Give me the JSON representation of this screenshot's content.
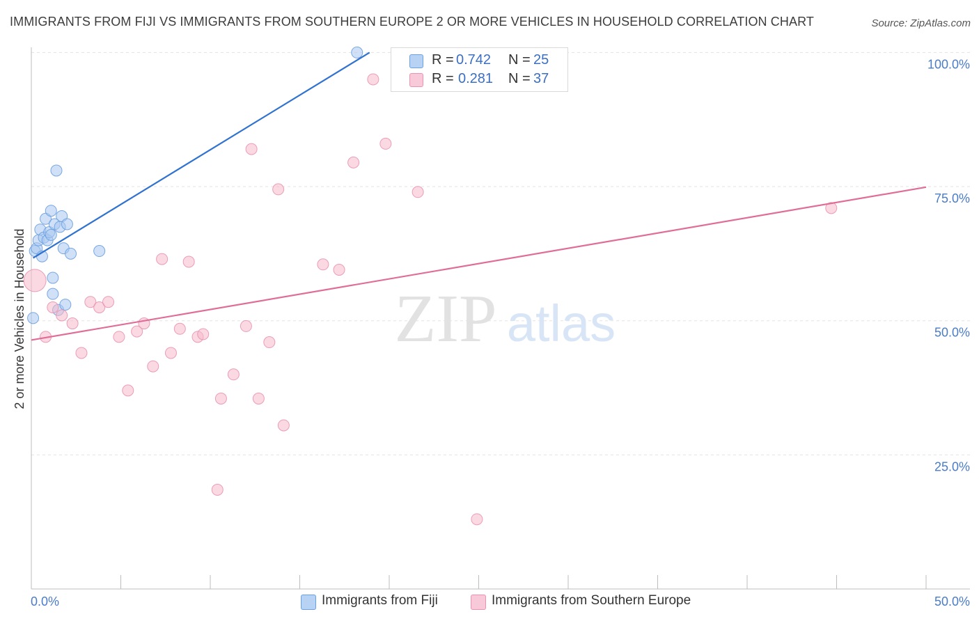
{
  "title": "IMMIGRANTS FROM FIJI VS IMMIGRANTS FROM SOUTHERN EUROPE 2 OR MORE VEHICLES IN HOUSEHOLD CORRELATION CHART",
  "source": "Source: ZipAtlas.com",
  "watermark": {
    "zip": "ZIP",
    "atlas": "atlas"
  },
  "legend": {
    "fiji": {
      "r_label": "R =",
      "r_value": "0.742",
      "n_label": "N =",
      "n_value": "25"
    },
    "southern_europe": {
      "r_label": "R =",
      "r_value": "0.281",
      "n_label": "N =",
      "n_value": "37"
    }
  },
  "colors": {
    "fiji_fill": "#a9c8f0",
    "fiji_stroke": "#6a9fe0",
    "fiji_line": "#2f72d0",
    "se_fill": "#f6b9cc",
    "se_stroke": "#e993b0",
    "se_line": "#e06d97",
    "tick_text": "#4a7cc7"
  },
  "chart_data": {
    "type": "scatter",
    "ylabel": "2 or more Vehicles in Household",
    "xlim": [
      0,
      50
    ],
    "ylim": [
      0,
      102
    ],
    "x_tick_labels": [
      "0.0%",
      "50.0%"
    ],
    "y_ticks": [
      {
        "value": 25,
        "label": "25.0%"
      },
      {
        "value": 50,
        "label": "50.0%"
      },
      {
        "value": 75,
        "label": "75.0%"
      },
      {
        "value": 100,
        "label": "100.0%"
      }
    ],
    "grid": true,
    "series": [
      {
        "name": "Immigrants from Fiji",
        "color": "#6a9fe0",
        "points": [
          [
            0.1,
            50.5
          ],
          [
            0.2,
            63.0
          ],
          [
            0.3,
            63.5
          ],
          [
            0.4,
            65.0
          ],
          [
            0.5,
            67.0
          ],
          [
            0.6,
            62.0
          ],
          [
            0.7,
            65.5
          ],
          [
            0.8,
            69.0
          ],
          [
            0.9,
            65.0
          ],
          [
            1.0,
            66.5
          ],
          [
            1.1,
            66.0
          ],
          [
            1.1,
            70.5
          ],
          [
            1.2,
            58.0
          ],
          [
            1.2,
            55.0
          ],
          [
            1.3,
            68.0
          ],
          [
            1.4,
            78.0
          ],
          [
            1.5,
            52.0
          ],
          [
            1.6,
            67.5
          ],
          [
            1.7,
            69.5
          ],
          [
            1.8,
            63.5
          ],
          [
            1.9,
            53.0
          ],
          [
            2.0,
            68.0
          ],
          [
            2.2,
            62.5
          ],
          [
            3.8,
            63.0
          ],
          [
            18.2,
            100.0
          ]
        ],
        "trend": {
          "x": [
            0.1,
            18.9
          ],
          "y": [
            61.7,
            100.0
          ]
        }
      },
      {
        "name": "Immigrants from Southern Europe",
        "color": "#e993b0",
        "points": [
          [
            0.2,
            57.5
          ],
          [
            0.8,
            47.0
          ],
          [
            1.2,
            52.5
          ],
          [
            1.7,
            51.0
          ],
          [
            2.3,
            49.5
          ],
          [
            2.8,
            44.0
          ],
          [
            3.3,
            53.5
          ],
          [
            3.8,
            52.5
          ],
          [
            4.3,
            53.5
          ],
          [
            4.9,
            47.0
          ],
          [
            5.4,
            37.0
          ],
          [
            5.9,
            48.0
          ],
          [
            6.3,
            49.5
          ],
          [
            6.8,
            41.5
          ],
          [
            7.3,
            61.5
          ],
          [
            7.8,
            44.0
          ],
          [
            8.3,
            48.5
          ],
          [
            8.8,
            61.0
          ],
          [
            9.3,
            47.0
          ],
          [
            9.6,
            47.5
          ],
          [
            10.4,
            18.5
          ],
          [
            10.6,
            35.5
          ],
          [
            11.3,
            40.0
          ],
          [
            12.0,
            49.0
          ],
          [
            12.3,
            82.0
          ],
          [
            12.7,
            35.5
          ],
          [
            13.3,
            46.0
          ],
          [
            13.8,
            74.5
          ],
          [
            14.1,
            30.5
          ],
          [
            16.3,
            60.5
          ],
          [
            17.2,
            59.5
          ],
          [
            18.0,
            79.5
          ],
          [
            19.1,
            95.0
          ],
          [
            19.8,
            83.0
          ],
          [
            21.6,
            74.0
          ],
          [
            24.9,
            13.0
          ],
          [
            44.7,
            71.0
          ]
        ],
        "trend": {
          "x": [
            0.0,
            50.0
          ],
          "y": [
            46.4,
            74.9
          ]
        }
      }
    ]
  },
  "bottom_legend": {
    "fiji_label": "Immigrants from Fiji",
    "se_label": "Immigrants from Southern Europe"
  }
}
